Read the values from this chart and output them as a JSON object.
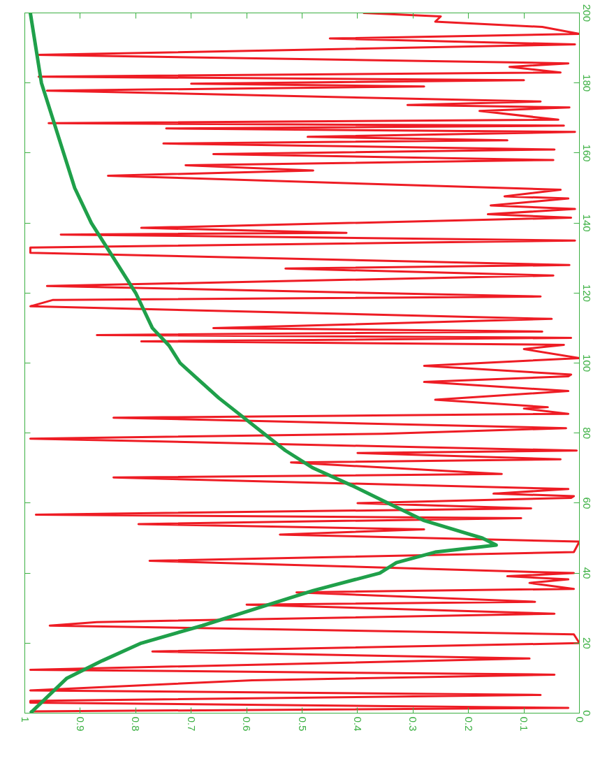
{
  "chart_data": {
    "type": "line",
    "xlim": [
      1,
      0
    ],
    "xticks": [
      1,
      0.9,
      0.8,
      0.7,
      0.6,
      0.5,
      0.4,
      0.3,
      0.2,
      0.1,
      0
    ],
    "ylim": [
      0,
      200
    ],
    "yticks": [
      0,
      20,
      40,
      60,
      80,
      100,
      120,
      140,
      160,
      180,
      200
    ],
    "grid": false,
    "series": [
      {
        "color": "#ee1c24",
        "x": [
          0.99,
          0.02,
          0.99,
          0.99,
          0.07,
          0.99,
          0.59,
          0.045,
          0.99,
          0.09,
          0.77,
          0.0,
          0.01,
          0.955,
          0.87,
          0.045,
          0.6,
          0.08,
          0.51,
          0.01,
          0.09,
          0.02,
          0.13,
          0.01,
          0.775,
          0.01,
          0.0,
          0.54,
          0.28,
          0.795,
          0.105,
          0.98,
          0.087,
          0.4,
          0.015,
          0.01,
          0.155,
          0.02,
          0.84,
          0.14,
          0.52,
          0.034,
          0.4,
          0.005,
          0.99,
          0.355,
          0.024,
          0.84,
          0.02,
          0.1,
          0.057,
          0.26,
          0.02,
          0.28,
          0.02,
          0.015,
          0.28,
          0.0,
          0.1,
          0.028,
          0.79,
          0.015,
          0.87,
          0.067,
          0.66,
          0.05,
          0.99,
          0.95,
          0.07,
          0.96,
          0.047,
          0.53,
          0.018,
          0.99,
          0.99,
          0.008,
          0.935,
          0.42,
          0.79,
          0.015,
          0.165,
          0.008,
          0.16,
          0.02,
          0.135,
          0.034,
          0.85,
          0.48,
          0.71,
          0.047,
          0.66,
          0.045,
          0.75,
          0.13,
          0.49,
          0.008,
          0.745,
          0.028,
          0.957,
          0.038,
          0.18,
          0.018,
          0.31,
          0.07,
          0.96,
          0.28,
          0.7,
          0.1,
          0.975,
          0.034,
          0.126,
          0.02,
          0.977,
          0.008,
          0.45,
          0.0,
          0.067,
          0.26,
          0.25,
          0.39
        ],
        "values": [
          0.5,
          1.5,
          3,
          3.5,
          5.2,
          6.5,
          9.4,
          11,
          12.4,
          15.6,
          17.6,
          20,
          22.5,
          25,
          26,
          28.4,
          31,
          31.8,
          34.5,
          35.5,
          37.2,
          38.2,
          39.1,
          40,
          43.5,
          46,
          49,
          51,
          52.5,
          54,
          55.7,
          56.7,
          58.5,
          60,
          61.5,
          62,
          62.7,
          64,
          67.3,
          68.3,
          71.6,
          72.5,
          74.3,
          75,
          78.4,
          79.8,
          81.4,
          84.4,
          85.5,
          87,
          87.4,
          89.5,
          92,
          94.6,
          96.2,
          96.7,
          99.2,
          101.4,
          104,
          105.2,
          106.2,
          107.2,
          108,
          109,
          110,
          112.6,
          116.2,
          118,
          119,
          122,
          125,
          127,
          128,
          131.5,
          133,
          135,
          136.7,
          137.2,
          138.6,
          141.5,
          142.5,
          144,
          145,
          147,
          147.6,
          149.5,
          153.5,
          155,
          156.5,
          158,
          159.7,
          161,
          162.7,
          163.6,
          164.6,
          166,
          167,
          167.8,
          168.5,
          169.5,
          172,
          173,
          173.7,
          174.7,
          177.8,
          179,
          179.8,
          180.8,
          181.8,
          183,
          184.6,
          185.6,
          188,
          191,
          192.7,
          194,
          196,
          197.5,
          199,
          200
        ]
      },
      {
        "color": "#1fa04a",
        "x": [
          0.99,
          0.924,
          0.86,
          0.79,
          0.68,
          0.58,
          0.48,
          0.36,
          0.33,
          0.26,
          0.15,
          0.175,
          0.28,
          0.345,
          0.41,
          0.48,
          0.53,
          0.57,
          0.61,
          0.65,
          0.685,
          0.72,
          0.74,
          0.77,
          0.8,
          0.84,
          0.88,
          0.91,
          0.93,
          0.95,
          0.97,
          0.98,
          0.99
        ],
        "values": [
          0,
          10,
          15,
          20,
          25,
          30,
          35,
          40,
          43,
          46,
          48,
          50,
          55,
          60,
          65,
          70,
          75,
          80,
          85,
          90,
          95,
          100,
          105,
          110,
          120,
          130,
          140,
          150,
          160,
          170,
          180,
          190,
          200
        ]
      }
    ]
  }
}
